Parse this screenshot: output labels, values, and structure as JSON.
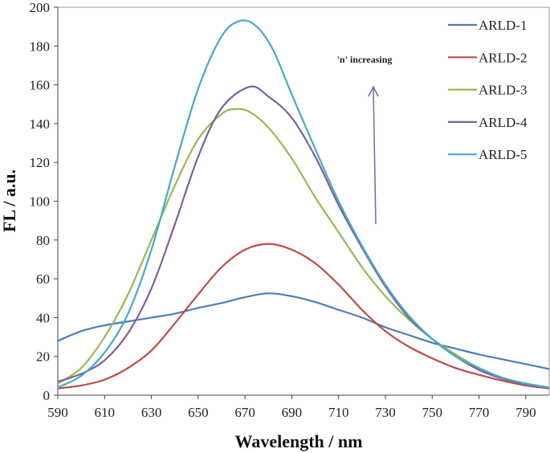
{
  "chart_data": {
    "type": "line",
    "title": "",
    "xlabel": "Wavelength / nm",
    "ylabel": "FL / a.u.",
    "xlim": [
      590,
      800
    ],
    "ylim": [
      0,
      200
    ],
    "xticks": [
      590,
      610,
      630,
      650,
      670,
      690,
      710,
      730,
      750,
      770,
      790
    ],
    "yticks": [
      0,
      20,
      40,
      60,
      80,
      100,
      120,
      140,
      160,
      180,
      200
    ],
    "grid": false,
    "legend_position": "top-right",
    "annotation": "'n' increasing",
    "annotation_arrow_color": "#8064a2",
    "series": [
      {
        "name": "ARLD-1",
        "color": "#4a7ebb",
        "x": [
          590,
          600,
          610,
          620,
          630,
          640,
          650,
          660,
          670,
          680,
          690,
          700,
          710,
          720,
          730,
          740,
          750,
          760,
          770,
          780,
          790,
          800
        ],
        "y": [
          28,
          33,
          36,
          38,
          40,
          42,
          45,
          47.5,
          50.5,
          52.5,
          51,
          48,
          44,
          40,
          35,
          31,
          27,
          24,
          21,
          18.5,
          16,
          13.5
        ]
      },
      {
        "name": "ARLD-2",
        "color": "#be4b48",
        "x": [
          590,
          600,
          610,
          620,
          630,
          640,
          650,
          660,
          670,
          680,
          690,
          700,
          710,
          720,
          730,
          740,
          750,
          760,
          770,
          780,
          790,
          800
        ],
        "y": [
          3.5,
          5,
          8,
          14,
          23,
          37,
          52,
          66,
          75,
          78,
          75,
          68,
          57,
          44,
          33,
          25,
          19,
          14,
          10.5,
          7.5,
          5,
          3.5
        ]
      },
      {
        "name": "ARLD-3",
        "color": "#98b954",
        "x": [
          590,
          600,
          610,
          620,
          630,
          640,
          650,
          660,
          666,
          672,
          680,
          690,
          700,
          710,
          720,
          730,
          740,
          750,
          760,
          770,
          780,
          790,
          800
        ],
        "y": [
          6,
          14,
          30,
          52,
          80,
          108,
          132,
          145,
          147.5,
          146,
          138,
          122,
          102,
          84,
          66,
          51,
          39,
          29,
          21,
          14,
          9,
          6,
          4
        ]
      },
      {
        "name": "ARLD-4",
        "color": "#7d60a0",
        "x": [
          590,
          600,
          610,
          620,
          630,
          640,
          650,
          660,
          672,
          680,
          690,
          700,
          710,
          720,
          730,
          740,
          750,
          760,
          770,
          780,
          790,
          800
        ],
        "y": [
          7,
          11,
          18,
          32,
          55,
          88,
          123,
          148,
          159,
          154,
          143,
          123,
          98,
          76,
          56,
          40,
          29,
          20,
          13,
          8.5,
          5.5,
          4
        ]
      },
      {
        "name": "ARLD-5",
        "color": "#46aac5",
        "x": [
          590,
          600,
          610,
          620,
          630,
          640,
          650,
          660,
          668,
          675,
          682,
          690,
          700,
          710,
          720,
          730,
          740,
          750,
          760,
          770,
          780,
          790,
          800
        ],
        "y": [
          4,
          10,
          22,
          42,
          75,
          118,
          158,
          185,
          193,
          190,
          178,
          155,
          127,
          100,
          77,
          57,
          41,
          29,
          20,
          14,
          9,
          6,
          4
        ]
      }
    ]
  }
}
